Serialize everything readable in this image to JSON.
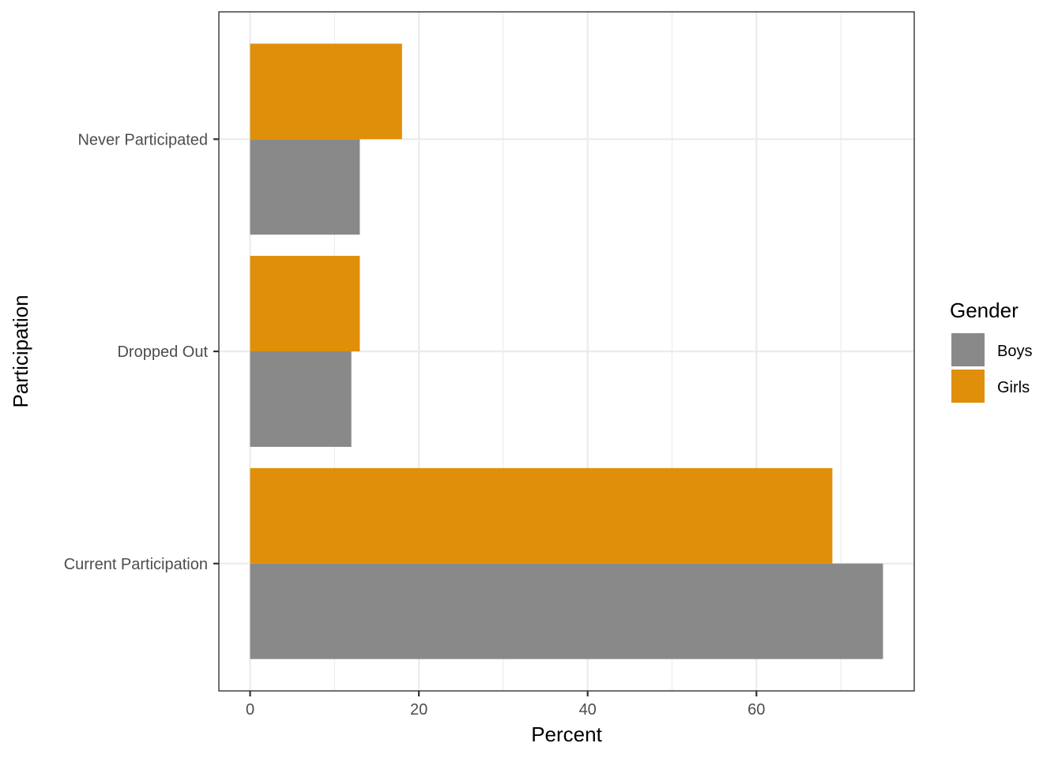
{
  "chart_data": {
    "type": "bar",
    "orientation": "horizontal",
    "categories": [
      "Current Participation",
      "Dropped Out",
      "Never Participated"
    ],
    "series": [
      {
        "name": "Boys",
        "values": [
          75,
          12,
          13
        ],
        "color": "#898989"
      },
      {
        "name": "Girls",
        "values": [
          69,
          13,
          18
        ],
        "color": "#DF8F09"
      }
    ],
    "xlabel": "Percent",
    "ylabel": "Participation",
    "xlim": [
      -3.7,
      78.7
    ],
    "x_ticks": [
      0,
      20,
      40,
      60
    ],
    "x_minor": [
      10,
      30,
      50,
      70
    ],
    "grid": true,
    "legend": {
      "title": "Gender",
      "position": "right"
    }
  }
}
